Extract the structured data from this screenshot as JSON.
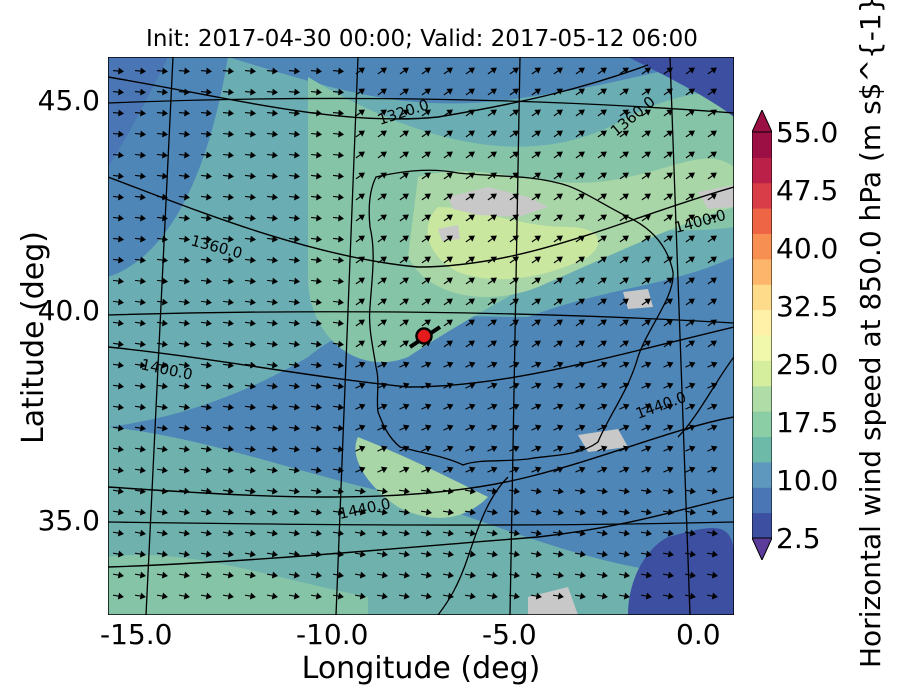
{
  "title": "Init: 2017-04-30 00:00; Valid: 2017-05-12 06:00",
  "axes": {
    "xlabel": "Longitude (deg)",
    "ylabel": "Latitude (deg)",
    "xticks": [
      "-15.0",
      "-10.0",
      "-5.0",
      "0.0"
    ],
    "yticks": [
      "45.0",
      "40.0",
      "35.0"
    ]
  },
  "colorbar": {
    "label": "Horizontal wind speed at 850.0 hPa (m s$^{-1}$)",
    "ticks": [
      "55.0",
      "47.5",
      "40.0",
      "32.5",
      "25.0",
      "17.5",
      "10.0",
      "2.5"
    ],
    "colors": [
      "#3d4fa0",
      "#4a76b5",
      "#5e98bf",
      "#6dbaa8",
      "#8bcea6",
      "#b0dca8",
      "#d5ee9e",
      "#f1f8ac",
      "#fff2a8",
      "#fddb8a",
      "#fcb56a",
      "#f78f52",
      "#ed6544",
      "#d93d48",
      "#ba2048",
      "#9b0f45"
    ]
  },
  "contour_labels": [
    "1320.0",
    "1360.0",
    "1360.0",
    "1400.0",
    "1400.0",
    "1440.0",
    "1440.0"
  ],
  "marker": {
    "name": "location",
    "color": "#e41a1c"
  }
}
